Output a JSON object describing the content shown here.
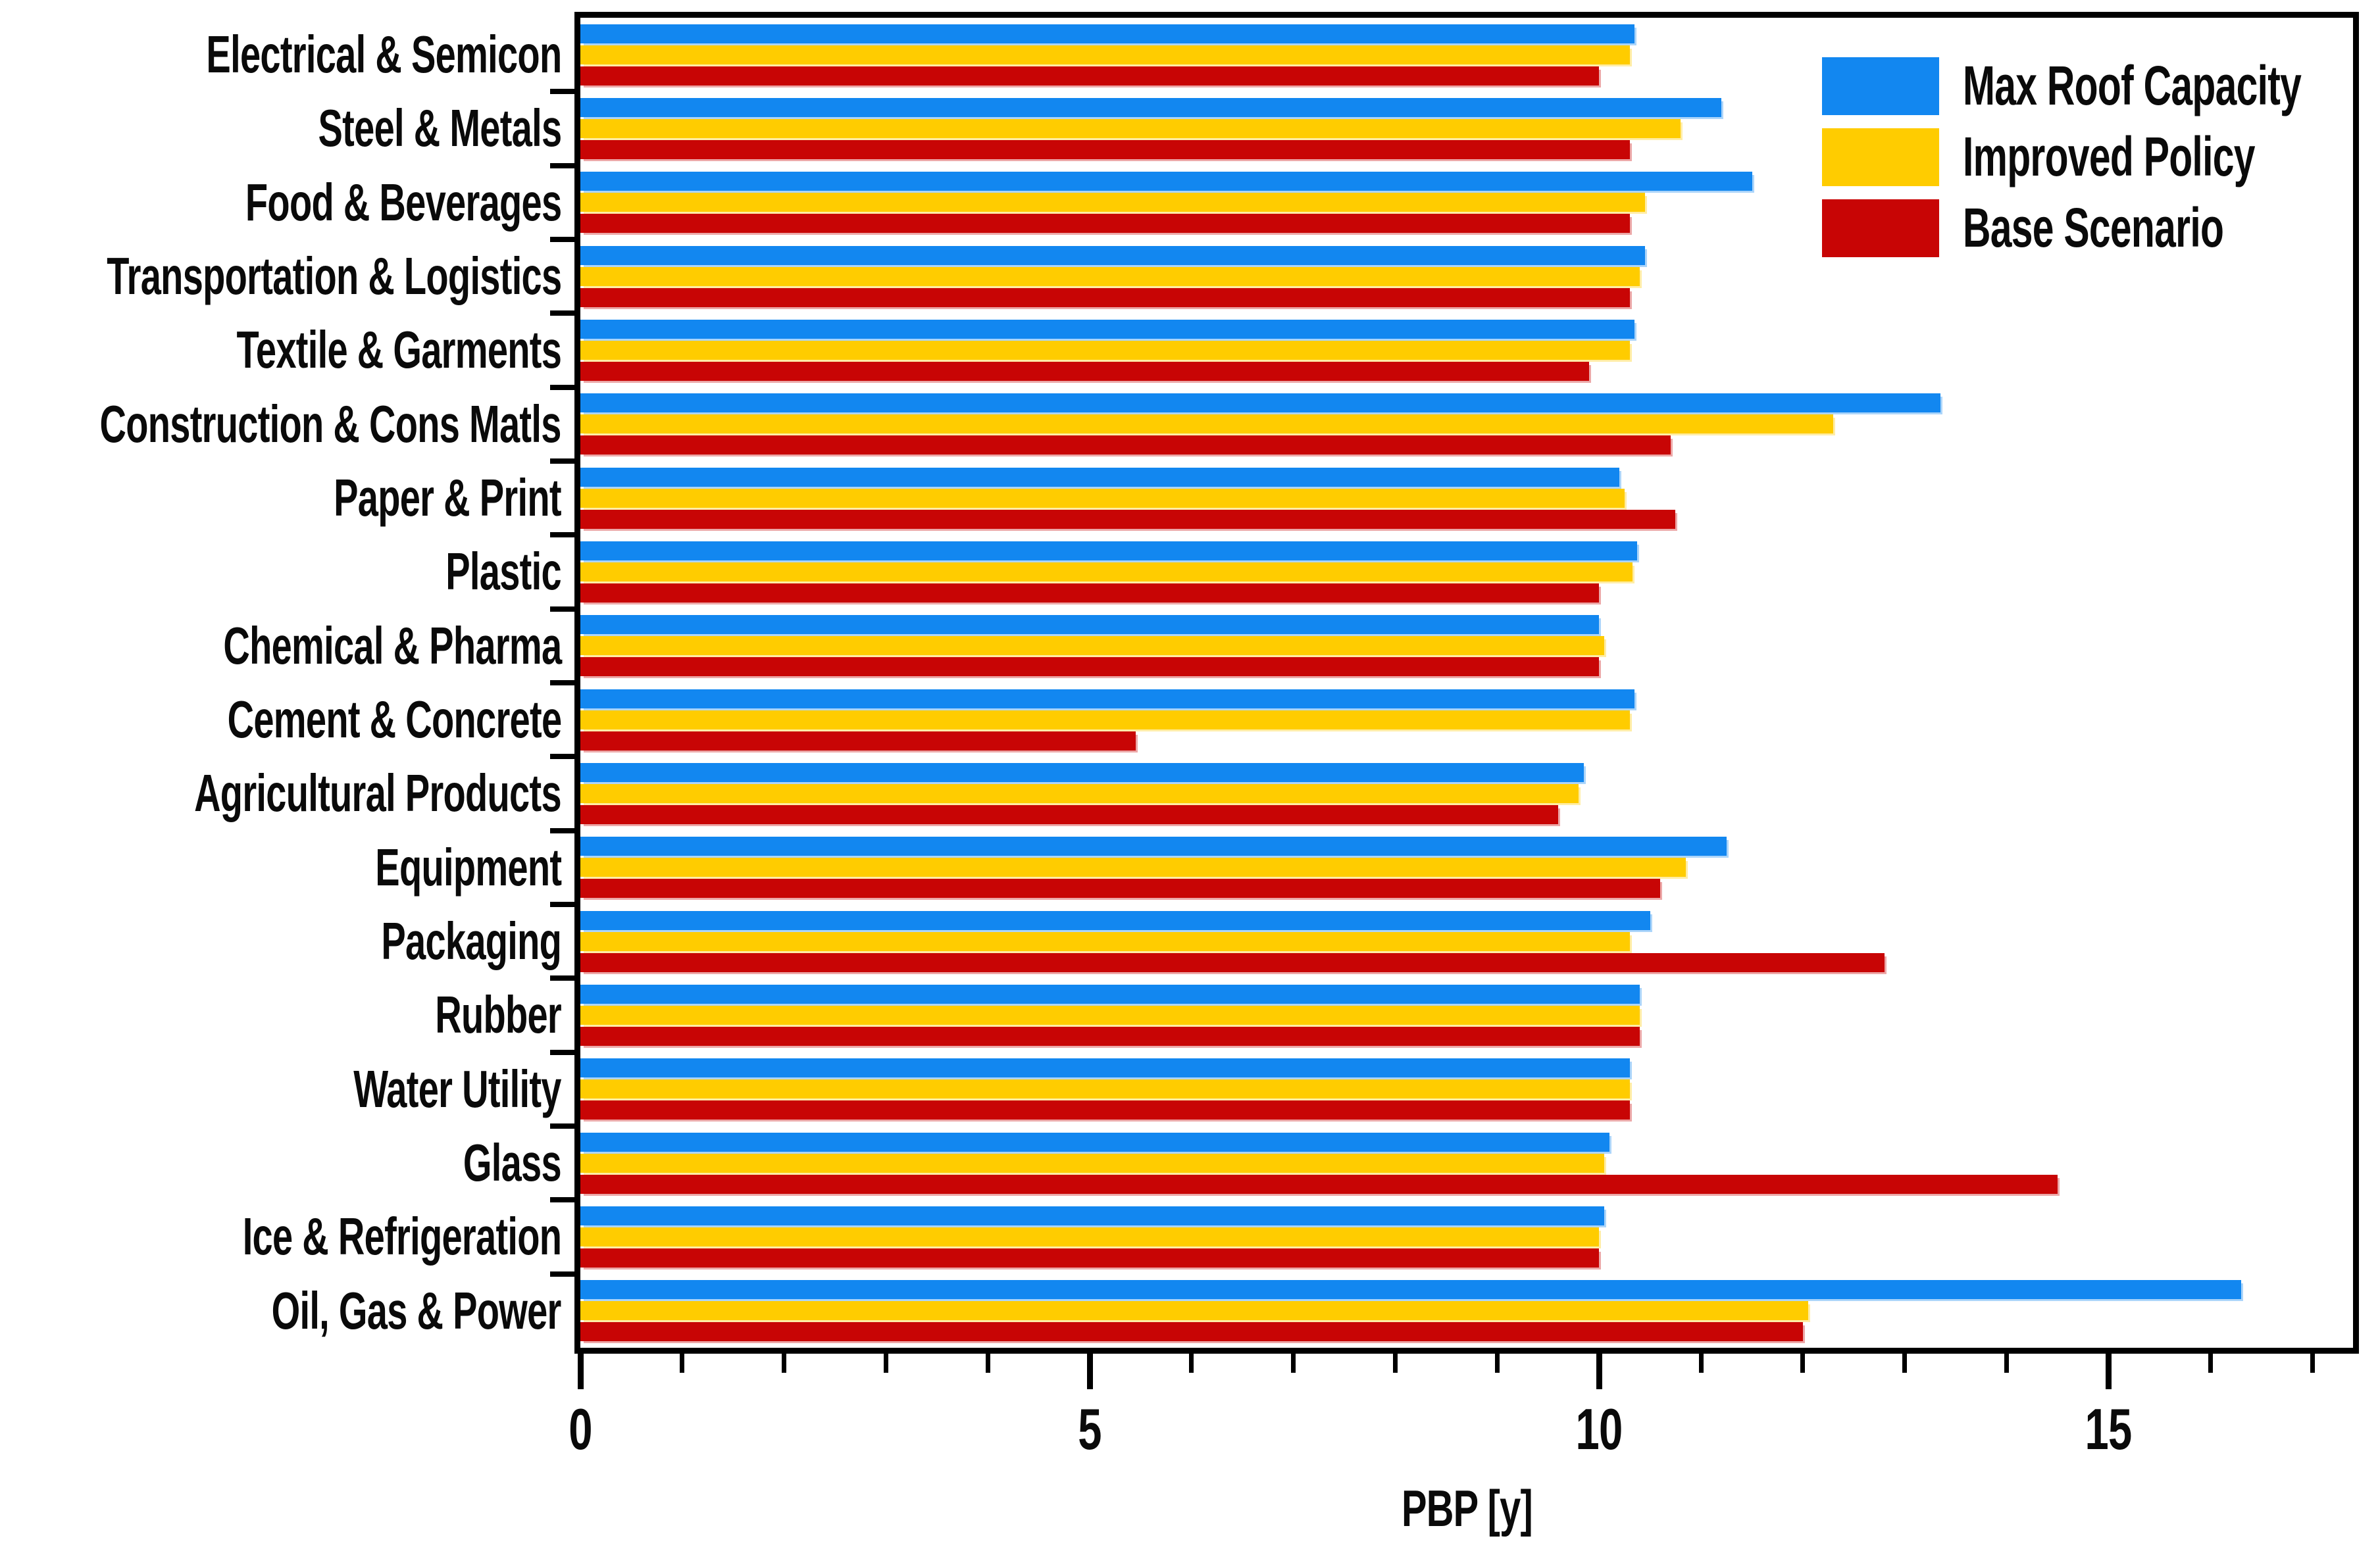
{
  "figure": {
    "background": "#ffffff",
    "frame_color": "#000000"
  },
  "x_axis": {
    "label": "PBP [y]",
    "major_tick_labels": [
      "0",
      "5",
      "10",
      "15"
    ]
  },
  "chart_data": {
    "type": "bar",
    "orientation": "horizontal",
    "title": "",
    "xlabel": "PBP [y]",
    "ylabel": "",
    "xlim": [
      0,
      17.4
    ],
    "x_major_ticks": [
      0,
      5,
      10,
      15
    ],
    "x_minor_tick_step": 1,
    "grid": false,
    "legend_position": "top-right-inside",
    "categories": [
      "Electrical & Semicon",
      "Steel & Metals",
      "Food & Beverages",
      "Transportation & Logistics",
      "Textile & Garments",
      "Construction & Cons Matls",
      "Paper & Print",
      "Plastic",
      "Chemical & Pharma",
      "Cement & Concrete",
      "Agricultural Products",
      "Equipment",
      "Packaging",
      "Rubber",
      "Water Utility",
      "Glass",
      "Ice & Refrigeration",
      "Oil, Gas & Power"
    ],
    "series": [
      {
        "name": "Max Roof Capacity",
        "color": "#1287F0",
        "values": [
          10.35,
          11.2,
          11.5,
          10.45,
          10.35,
          13.35,
          10.2,
          10.37,
          10.0,
          10.35,
          9.85,
          11.25,
          10.5,
          10.4,
          10.3,
          10.1,
          10.05,
          16.3
        ]
      },
      {
        "name": "Improved Policy",
        "color": "#FFCC00",
        "values": [
          10.3,
          10.8,
          10.45,
          10.4,
          10.3,
          12.3,
          10.25,
          10.33,
          10.05,
          10.3,
          9.8,
          10.85,
          10.3,
          10.4,
          10.3,
          10.05,
          10.0,
          12.05
        ]
      },
      {
        "name": "Base Scenario",
        "color": "#C80505",
        "values": [
          10.0,
          10.3,
          10.3,
          10.3,
          9.9,
          10.7,
          10.75,
          10.0,
          10.0,
          5.45,
          9.6,
          10.6,
          12.8,
          10.4,
          10.3,
          14.5,
          10.0,
          12.0
        ]
      }
    ]
  }
}
